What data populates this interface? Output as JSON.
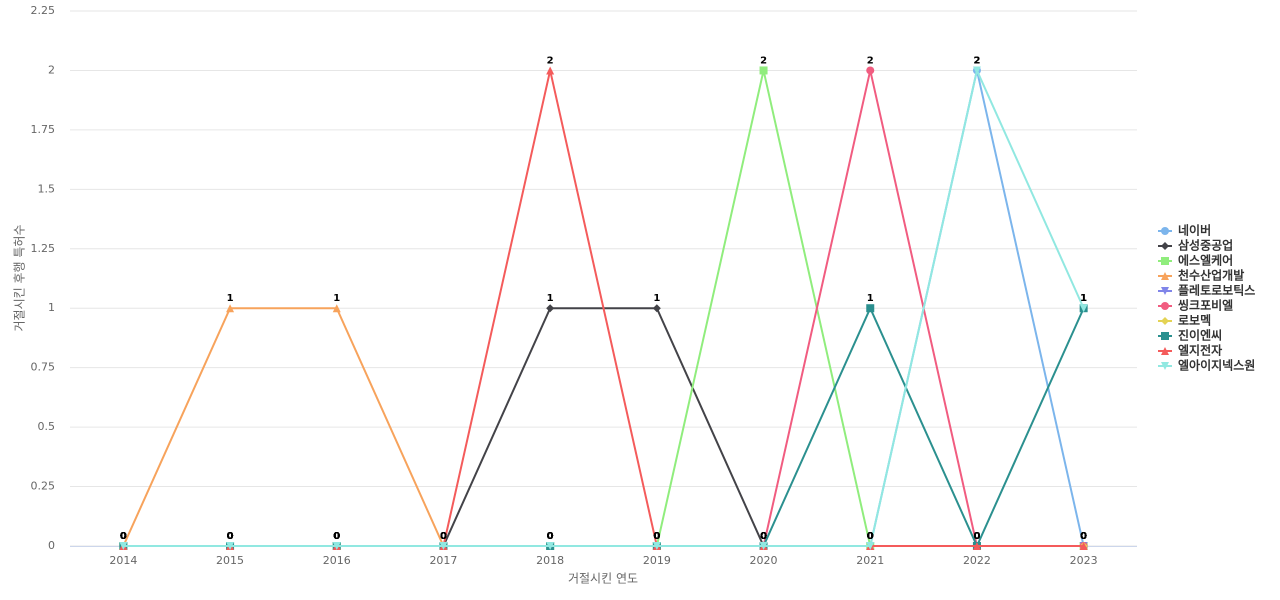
{
  "chart_data": {
    "type": "line",
    "x_label": "거절시킨 연도",
    "y_label": "거절시킨 후행 특허수",
    "categories": [
      "2014",
      "2015",
      "2016",
      "2017",
      "2018",
      "2019",
      "2020",
      "2021",
      "2022",
      "2023"
    ],
    "ylim": [
      0,
      2.25
    ],
    "yticks": [
      0,
      0.25,
      0.5,
      0.75,
      1,
      1.25,
      1.5,
      1.75,
      2,
      2.25
    ],
    "grid": true,
    "legend": "right",
    "series": [
      {
        "name": "네이버",
        "color": "#7cb5ec",
        "marker": "circle",
        "values": [
          0,
          0,
          0,
          0,
          0,
          0,
          0,
          0,
          2,
          0
        ]
      },
      {
        "name": "삼성중공업",
        "color": "#434348",
        "marker": "diamond",
        "values": [
          0,
          0,
          0,
          0,
          1,
          1,
          0,
          0,
          0,
          0
        ]
      },
      {
        "name": "에스엘케어",
        "color": "#90ed7d",
        "marker": "square",
        "values": [
          0,
          0,
          0,
          0,
          0,
          0,
          2,
          0,
          0,
          0
        ]
      },
      {
        "name": "천수산업개발",
        "color": "#f7a35c",
        "marker": "triangle",
        "values": [
          0,
          1,
          1,
          0,
          0,
          0,
          0,
          0,
          0,
          0
        ]
      },
      {
        "name": "플레토로보틱스",
        "color": "#8085e9",
        "marker": "triangle-down",
        "values": [
          0,
          0,
          0,
          0,
          0,
          0,
          0,
          0,
          0,
          0
        ]
      },
      {
        "name": "씽크포비엘",
        "color": "#f15c80",
        "marker": "circle",
        "values": [
          0,
          0,
          0,
          0,
          0,
          0,
          0,
          2,
          0,
          0
        ]
      },
      {
        "name": "로보멕",
        "color": "#e4d354",
        "marker": "diamond",
        "values": [
          0,
          0,
          0,
          0,
          0,
          0,
          0,
          0,
          0,
          0
        ]
      },
      {
        "name": "진이엔씨",
        "color": "#2b908f",
        "marker": "square",
        "values": [
          0,
          0,
          0,
          0,
          0,
          0,
          0,
          1,
          0,
          1
        ]
      },
      {
        "name": "엘지전자",
        "color": "#f45b5b",
        "marker": "triangle",
        "values": [
          0,
          0,
          0,
          0,
          2,
          0,
          0,
          0,
          0,
          0
        ]
      },
      {
        "name": "엘아이지넥스원",
        "color": "#91e8e1",
        "marker": "triangle-down",
        "values": [
          0,
          0,
          0,
          0,
          0,
          0,
          0,
          0,
          2,
          1
        ]
      }
    ]
  }
}
